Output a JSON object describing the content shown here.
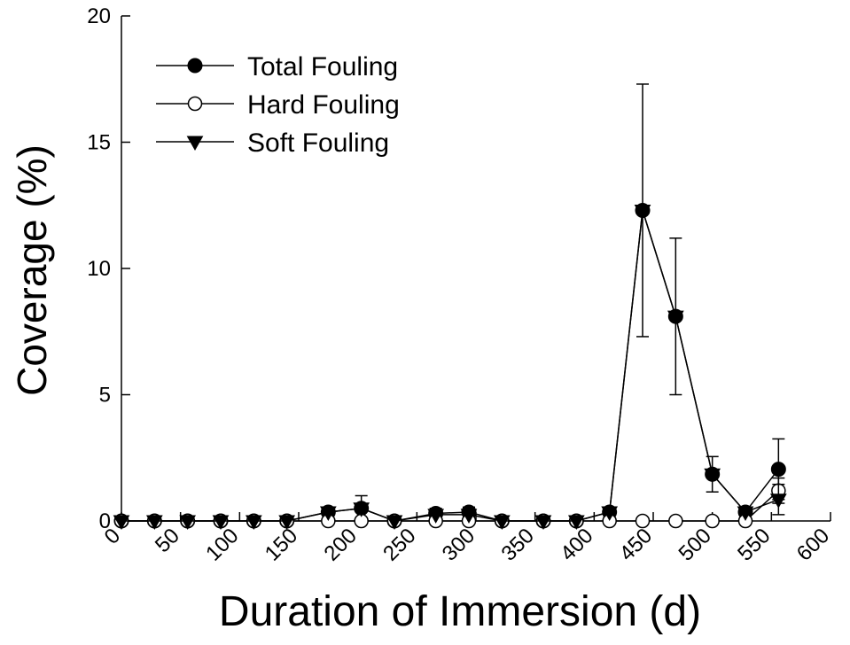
{
  "chart_data": {
    "type": "line",
    "xlabel": "Duration of Immersion (d)",
    "ylabel": "Coverage (%)",
    "xlim": [
      0,
      600
    ],
    "ylim": [
      0,
      20
    ],
    "xticks": [
      0,
      50,
      100,
      150,
      200,
      250,
      300,
      350,
      400,
      450,
      500,
      550,
      600
    ],
    "yticks": [
      0,
      5,
      10,
      15,
      20
    ],
    "grid": false,
    "legend_position": "top-left",
    "x": [
      0,
      28,
      56,
      84,
      112,
      140,
      175,
      203,
      231,
      266,
      294,
      322,
      357,
      385,
      413,
      441,
      469,
      500,
      528,
      556
    ],
    "series": [
      {
        "name": "Total Fouling",
        "marker": "filled-circle",
        "values": [
          0,
          0,
          0,
          0,
          0,
          0,
          0.35,
          0.5,
          0,
          0.3,
          0.35,
          0,
          0,
          0,
          0.35,
          12.3,
          8.1,
          1.85,
          0.35,
          2.05
        ],
        "error": [
          0,
          0,
          0,
          0,
          0,
          0,
          0.1,
          0.5,
          0,
          0.2,
          0.2,
          0,
          0,
          0,
          0.2,
          5.0,
          3.1,
          0.7,
          0.15,
          1.2
        ]
      },
      {
        "name": "Hard Fouling",
        "marker": "open-circle",
        "values": [
          0,
          0,
          0,
          0,
          0,
          0,
          0,
          0,
          0,
          0,
          0,
          0,
          0,
          0,
          0,
          0,
          0,
          0,
          0,
          1.2
        ],
        "error": [
          0,
          0,
          0,
          0,
          0,
          0,
          0,
          0,
          0,
          0,
          0,
          0,
          0,
          0,
          0,
          0,
          0,
          0,
          0,
          0.5
        ]
      },
      {
        "name": "Soft Fouling",
        "marker": "filled-triangle-down",
        "values": [
          0,
          0,
          0,
          0,
          0,
          0,
          0.35,
          0.5,
          0,
          0.25,
          0.25,
          0,
          0,
          0,
          0.35,
          12.3,
          8.1,
          1.85,
          0.35,
          0.85
        ],
        "error": [
          0,
          0,
          0,
          0,
          0,
          0,
          0,
          0,
          0,
          0,
          0,
          0,
          0,
          0,
          0,
          0,
          0,
          0,
          0,
          0.6
        ]
      }
    ]
  }
}
